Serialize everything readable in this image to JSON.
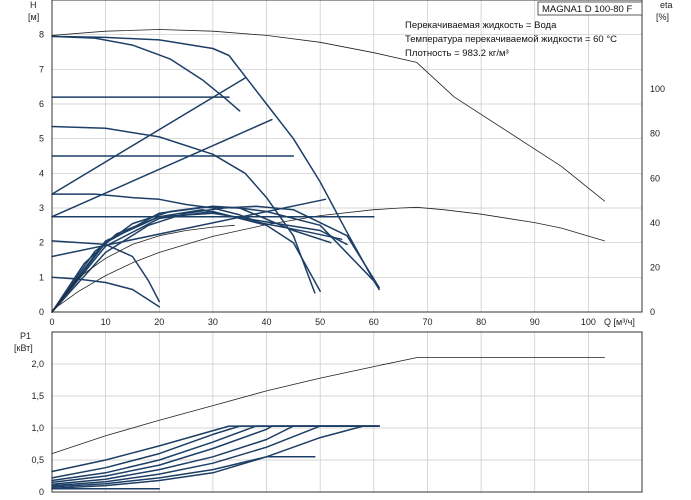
{
  "chart_data": [
    {
      "type": "line",
      "panel": "top",
      "title": "MAGNA1 D 100-80 F",
      "info": [
        "Перекачиваемая жидкость = Вода",
        "Температура перекачиваемой жидкости = 60 °C",
        "Плотность = 983.2 кг/м³"
      ],
      "ylabel": "H",
      "yunit": "[м]",
      "y2label": "eta",
      "y2unit": "[%]",
      "xlabel": "Q [м³/ч]",
      "xlim": [
        0,
        110
      ],
      "ylim": [
        0,
        9
      ],
      "y2lim": [
        0,
        140
      ],
      "xticks": [
        0,
        10,
        20,
        30,
        40,
        50,
        60,
        70,
        80,
        90,
        100
      ],
      "yticks": [
        0,
        1,
        2,
        3,
        4,
        5,
        6,
        7,
        8
      ],
      "y2ticks": [
        0,
        20,
        40,
        60,
        80,
        100
      ],
      "grid": true,
      "series": [
        {
          "axis": "y",
          "style": "thin",
          "x": [
            0,
            10,
            20,
            30,
            40,
            50,
            60,
            68,
            75,
            85,
            95,
            103
          ],
          "y": [
            7.98,
            8.1,
            8.15,
            8.1,
            7.98,
            7.78,
            7.48,
            7.2,
            6.2,
            5.2,
            4.2,
            3.2
          ]
        },
        {
          "axis": "y",
          "style": "thin",
          "x": [
            0,
            5,
            10,
            15,
            20,
            30,
            40,
            50,
            60,
            65,
            68,
            73,
            80,
            90,
            95,
            103
          ],
          "y": [
            0.05,
            0.6,
            1.05,
            1.42,
            1.72,
            2.18,
            2.52,
            2.78,
            2.95,
            3.0,
            3.02,
            2.95,
            2.82,
            2.58,
            2.42,
            2.05
          ]
        },
        {
          "axis": "y",
          "style": "bold",
          "x": [
            0,
            10,
            20,
            30,
            33,
            36,
            40,
            45,
            50,
            55,
            60,
            61
          ],
          "y": [
            7.95,
            7.92,
            7.85,
            7.6,
            7.4,
            6.8,
            6.0,
            5.0,
            3.75,
            2.3,
            0.9,
            0.65
          ]
        },
        {
          "axis": "y",
          "style": "bold",
          "x": [
            0,
            8,
            15,
            22,
            28,
            32,
            35
          ],
          "y": [
            7.95,
            7.9,
            7.7,
            7.3,
            6.7,
            6.2,
            5.8
          ]
        },
        {
          "axis": "y",
          "style": "bold",
          "x": [
            0,
            10,
            20,
            30,
            36,
            40,
            45,
            49
          ],
          "y": [
            5.35,
            5.3,
            5.05,
            4.55,
            4.0,
            3.3,
            2.2,
            0.55
          ]
        },
        {
          "axis": "y",
          "style": "bold",
          "x": [
            0,
            8,
            15,
            20,
            25,
            30,
            35,
            40,
            45,
            50
          ],
          "y": [
            3.4,
            3.4,
            3.3,
            3.25,
            3.1,
            3.0,
            2.8,
            2.5,
            2.0,
            0.6
          ]
        },
        {
          "axis": "y",
          "style": "bold",
          "x": [
            0,
            10,
            15,
            18,
            20
          ],
          "y": [
            2.05,
            1.95,
            1.6,
            0.9,
            0.3
          ]
        },
        {
          "axis": "y",
          "style": "bold",
          "x": [
            0,
            5,
            10,
            15,
            20
          ],
          "y": [
            1.0,
            0.95,
            0.85,
            0.65,
            0.15
          ]
        },
        {
          "axis": "y",
          "style": "bold",
          "x": [
            0,
            33
          ],
          "y": [
            6.2,
            6.2
          ]
        },
        {
          "axis": "y",
          "style": "bold",
          "x": [
            0,
            45
          ],
          "y": [
            4.5,
            4.5
          ]
        },
        {
          "axis": "y",
          "style": "bold",
          "x": [
            0,
            60
          ],
          "y": [
            2.75,
            2.75
          ]
        },
        {
          "axis": "y",
          "style": "bold",
          "x": [
            0,
            36
          ],
          "y": [
            3.4,
            6.75
          ]
        },
        {
          "axis": "y",
          "style": "bold",
          "x": [
            0,
            41
          ],
          "y": [
            2.75,
            5.55
          ]
        },
        {
          "axis": "y",
          "style": "bold",
          "x": [
            0,
            51
          ],
          "y": [
            1.6,
            3.25
          ]
        },
        {
          "axis": "y",
          "style": "bold",
          "x": [
            0,
            10,
            18,
            25,
            32,
            38,
            45,
            55,
            61
          ],
          "y": [
            0,
            1.72,
            2.5,
            2.85,
            3.0,
            3.05,
            2.95,
            2.2,
            0.7
          ]
        },
        {
          "axis": "y",
          "style": "bold",
          "x": [
            0,
            8,
            15,
            22,
            28,
            35,
            40,
            50,
            60
          ],
          "y": [
            0,
            1.75,
            2.55,
            2.9,
            3.02,
            3.0,
            2.9,
            2.5,
            0.9
          ]
        },
        {
          "axis": "y",
          "style": "bold",
          "x": [
            0,
            10,
            20,
            30,
            35,
            45,
            52
          ],
          "y": [
            0,
            2.0,
            2.85,
            3.05,
            3.0,
            2.35,
            2.0
          ]
        },
        {
          "axis": "y",
          "style": "bold",
          "x": [
            0,
            6,
            12,
            20,
            28,
            38,
            48,
            54
          ],
          "y": [
            0,
            1.4,
            2.25,
            2.75,
            2.95,
            2.6,
            2.3,
            2.1
          ]
        },
        {
          "axis": "y",
          "style": "bold",
          "x": [
            0,
            10,
            20,
            30,
            40,
            50,
            55
          ],
          "y": [
            0,
            2.05,
            2.75,
            2.85,
            2.6,
            2.35,
            1.95
          ]
        },
        {
          "axis": "y",
          "style": "bold",
          "x": [
            0,
            10,
            20,
            30,
            40
          ],
          "y": [
            0,
            1.9,
            2.7,
            2.9,
            2.5
          ]
        },
        {
          "axis": "y",
          "style": "thin",
          "x": [
            0,
            5,
            10,
            15,
            20,
            25,
            30,
            34
          ],
          "y": [
            0,
            1.0,
            1.55,
            1.95,
            2.2,
            2.35,
            2.45,
            2.5
          ]
        }
      ]
    },
    {
      "type": "line",
      "panel": "bottom",
      "ylabel": "P1",
      "yunit": "[кВт]",
      "xlim": [
        0,
        110
      ],
      "ylim": [
        0,
        2.5
      ],
      "yticks": [
        0,
        0.5,
        1.0,
        1.5,
        2.0
      ],
      "ytick_labels": [
        "0",
        "0,5",
        "1,0",
        "1,5",
        "2,0"
      ],
      "grid": true,
      "series": [
        {
          "style": "thin",
          "x": [
            0,
            10,
            20,
            30,
            40,
            50,
            60,
            68,
            103
          ],
          "y": [
            0.6,
            0.88,
            1.12,
            1.35,
            1.58,
            1.78,
            1.96,
            2.1,
            2.1
          ]
        },
        {
          "style": "bold",
          "x": [
            0,
            10,
            20,
            33,
            61
          ],
          "y": [
            0.32,
            0.5,
            0.72,
            1.03,
            1.03
          ]
        },
        {
          "style": "bold",
          "x": [
            0,
            10,
            20,
            30,
            35,
            61
          ],
          "y": [
            0.22,
            0.38,
            0.6,
            0.9,
            1.03,
            1.03
          ]
        },
        {
          "style": "bold",
          "x": [
            0,
            10,
            20,
            30,
            38,
            61
          ],
          "y": [
            0.18,
            0.3,
            0.5,
            0.78,
            1.03,
            1.03
          ]
        },
        {
          "style": "bold",
          "x": [
            0,
            10,
            20,
            30,
            40,
            41,
            61
          ],
          "y": [
            0.15,
            0.25,
            0.42,
            0.68,
            0.98,
            1.03,
            1.03
          ]
        },
        {
          "style": "bold",
          "x": [
            0,
            10,
            20,
            30,
            40,
            45,
            61
          ],
          "y": [
            0.12,
            0.2,
            0.35,
            0.55,
            0.82,
            1.03,
            1.03
          ]
        },
        {
          "style": "bold",
          "x": [
            0,
            10,
            20,
            30,
            40,
            50,
            61
          ],
          "y": [
            0.1,
            0.16,
            0.28,
            0.45,
            0.7,
            1.03,
            1.03
          ]
        },
        {
          "style": "bold",
          "x": [
            0,
            10,
            20,
            30,
            40,
            50,
            58
          ],
          "y": [
            0.08,
            0.13,
            0.22,
            0.35,
            0.55,
            0.85,
            1.03
          ]
        },
        {
          "style": "bold",
          "x": [
            0,
            10,
            20,
            30,
            40,
            49
          ],
          "y": [
            0.06,
            0.1,
            0.18,
            0.3,
            0.55,
            0.55
          ]
        },
        {
          "style": "bold",
          "x": [
            0,
            20
          ],
          "y": [
            0.05,
            0.05
          ]
        }
      ]
    }
  ]
}
